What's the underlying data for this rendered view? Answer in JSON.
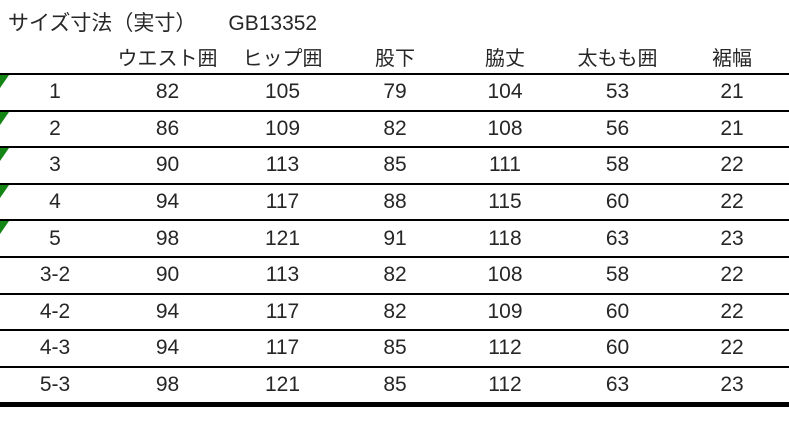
{
  "title": {
    "label": "サイズ寸法（実寸）",
    "code": "GB13352"
  },
  "table": {
    "columns": [
      "",
      "ウエスト囲",
      "ヒップ囲",
      "股下",
      "脇丈",
      "太もも囲",
      "裾幅"
    ],
    "rows": [
      {
        "size": "1",
        "values": [
          82,
          105,
          79,
          104,
          53,
          21
        ],
        "flag": true
      },
      {
        "size": "2",
        "values": [
          86,
          109,
          82,
          108,
          56,
          21
        ],
        "flag": true
      },
      {
        "size": "3",
        "values": [
          90,
          113,
          85,
          111,
          58,
          22
        ],
        "flag": true
      },
      {
        "size": "4",
        "values": [
          94,
          117,
          88,
          115,
          60,
          22
        ],
        "flag": true
      },
      {
        "size": "5",
        "values": [
          98,
          121,
          91,
          118,
          63,
          23
        ],
        "flag": true
      },
      {
        "size": "3-2",
        "values": [
          90,
          113,
          82,
          108,
          58,
          22
        ],
        "flag": false
      },
      {
        "size": "4-2",
        "values": [
          94,
          117,
          82,
          109,
          60,
          22
        ],
        "flag": false
      },
      {
        "size": "4-3",
        "values": [
          94,
          117,
          85,
          112,
          60,
          22
        ],
        "flag": false
      },
      {
        "size": "5-3",
        "values": [
          98,
          121,
          85,
          112,
          63,
          23
        ],
        "flag": false
      }
    ]
  },
  "icons": {
    "flag_icon": "cell-error-indicator-icon"
  },
  "colors": {
    "flag_green": "#148514",
    "grid_line": "#000000",
    "text": "#262626",
    "background": "#ffffff"
  }
}
